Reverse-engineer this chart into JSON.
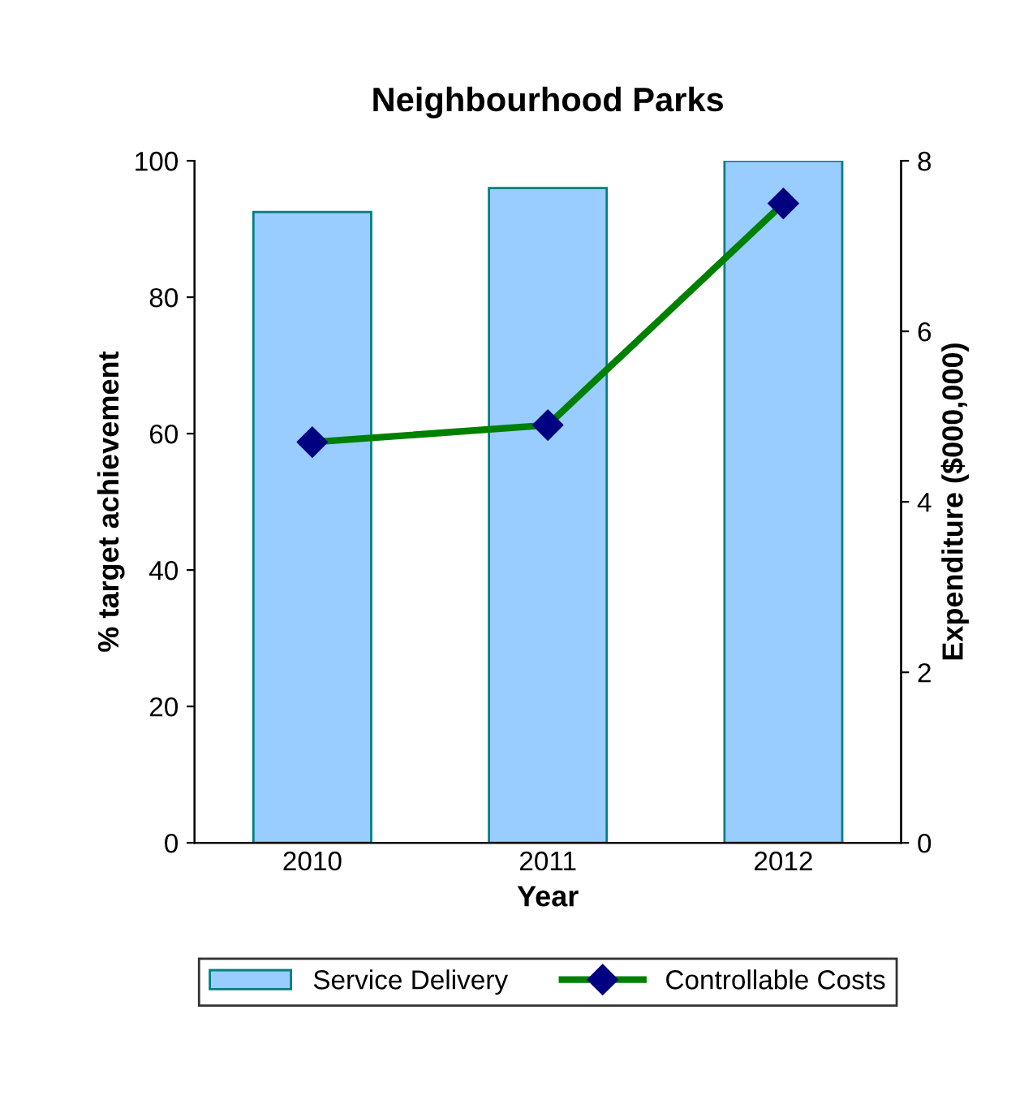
{
  "chart_data": {
    "type": "bar",
    "title": "Neighbourhood Parks",
    "xlabel": "Year",
    "ylabel": "% target achievement",
    "y2label": "Expenditure ($000,000)",
    "categories": [
      "2010",
      "2011",
      "2012"
    ],
    "series": [
      {
        "name": "Service Delivery",
        "color": "#99ccff",
        "values": [
          92.5,
          96,
          100
        ]
      },
      {
        "name": "Controllable Costs",
        "type": "line",
        "axis": "y2",
        "color": "#008000",
        "marker": "diamond",
        "values": [
          4.7,
          4.9,
          7.5
        ]
      }
    ],
    "ylim": [
      0,
      100
    ],
    "yticks": [
      0,
      20,
      40,
      60,
      80,
      100
    ],
    "y2lim": [
      0,
      8
    ],
    "y2ticks": [
      0,
      2,
      4,
      6,
      8
    ],
    "grid": false,
    "legend": "bottom"
  }
}
